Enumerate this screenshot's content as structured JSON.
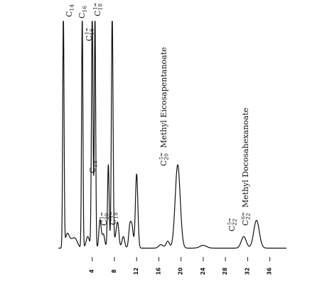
{
  "chart_data": {
    "type": "line",
    "title": "",
    "xlabel": "",
    "ylabel": "",
    "x_ticks": [
      {
        "value": 4,
        "label": "4"
      },
      {
        "value": 8,
        "label": "8"
      },
      {
        "value": 12,
        "label": "12"
      },
      {
        "value": 16,
        "label": "16"
      },
      {
        "value": 20,
        "label": "20"
      },
      {
        "value": 24,
        "label": "24"
      },
      {
        "value": 28,
        "label": "28"
      },
      {
        "value": 32,
        "label": "32"
      },
      {
        "value": 36,
        "label": "36"
      }
    ],
    "xlim": [
      -2.5,
      39
    ],
    "ylim": [
      0,
      100
    ],
    "grid": false,
    "color": "#111111",
    "baseline": 2,
    "peaks": [
      {
        "x": -1.2,
        "h": 100,
        "w": 0.12,
        "label": ""
      },
      {
        "x": 2.2,
        "h": 100,
        "w": 0.12,
        "label": "C14",
        "label_main": "C",
        "label_sub": "14",
        "label_sup": ""
      },
      {
        "x": 4.0,
        "h": 100,
        "w": 0.14,
        "label": "C16",
        "label_main": "C",
        "label_sub": "16",
        "label_sup": ""
      },
      {
        "x": 4.5,
        "h": 100,
        "w": 0.12,
        "label": "C16:1",
        "label_main": "C",
        "label_sub": "16",
        "label_sup": "1="
      },
      {
        "x": 7.6,
        "h": 100,
        "w": 0.15,
        "label": "C18:1",
        "label_main": "C",
        "label_sub": "18",
        "label_sup": "1="
      },
      {
        "x": 6.9,
        "h": 36,
        "w": 0.15,
        "label": "C18",
        "label_main": "C",
        "label_sub": "18",
        "label_sup": ""
      },
      {
        "x": 8.6,
        "h": 10,
        "w": 0.22,
        "label": "C20:1",
        "label_main": "C",
        "label_sub": "20",
        "label_sup": "1="
      },
      {
        "x": 10.8,
        "h": 10,
        "w": 0.22,
        "label": "C18:4",
        "label_main": "C",
        "label_sub": "18",
        "label_sup": "4="
      },
      {
        "x": 12.0,
        "h": 32,
        "w": 0.22,
        "label": ""
      },
      {
        "x": 19.4,
        "h": 36,
        "w": 0.45,
        "label": "C20:5 Methyl Eicosapentanoate",
        "label_main": "C",
        "label_sub": "20",
        "label_sup": "5=",
        "label_name": "Methyl Eicosapentanoate"
      },
      {
        "x": 31.3,
        "h": 5,
        "w": 0.45,
        "label": "C22:5",
        "label_main": "C",
        "label_sub": "22",
        "label_sup": "5="
      },
      {
        "x": 33.6,
        "h": 12,
        "w": 0.5,
        "label": "C22:6 Methyl Docosahexanoate",
        "label_main": "C",
        "label_sub": "22",
        "label_sup": "6=",
        "label_name": "Methyl Docosahexanoate"
      }
    ],
    "minor_peaks": [
      {
        "x": -0.5,
        "h": 6,
        "w": 0.35
      },
      {
        "x": 0.3,
        "h": 3,
        "w": 0.4
      },
      {
        "x": 1.0,
        "h": 3.5,
        "w": 0.4
      },
      {
        "x": 3.2,
        "h": 5,
        "w": 0.3
      },
      {
        "x": 5.4,
        "h": 12,
        "w": 0.2
      },
      {
        "x": 6.0,
        "h": 6,
        "w": 0.25
      },
      {
        "x": 8.2,
        "h": 4,
        "w": 0.25
      },
      {
        "x": 9.6,
        "h": 5,
        "w": 0.25
      },
      {
        "x": 11.2,
        "h": 8,
        "w": 0.2
      },
      {
        "x": 16.4,
        "h": 1.5,
        "w": 0.4
      },
      {
        "x": 17.6,
        "h": 3,
        "w": 0.3
      },
      {
        "x": 24.0,
        "h": 1.2,
        "w": 0.6
      }
    ]
  }
}
